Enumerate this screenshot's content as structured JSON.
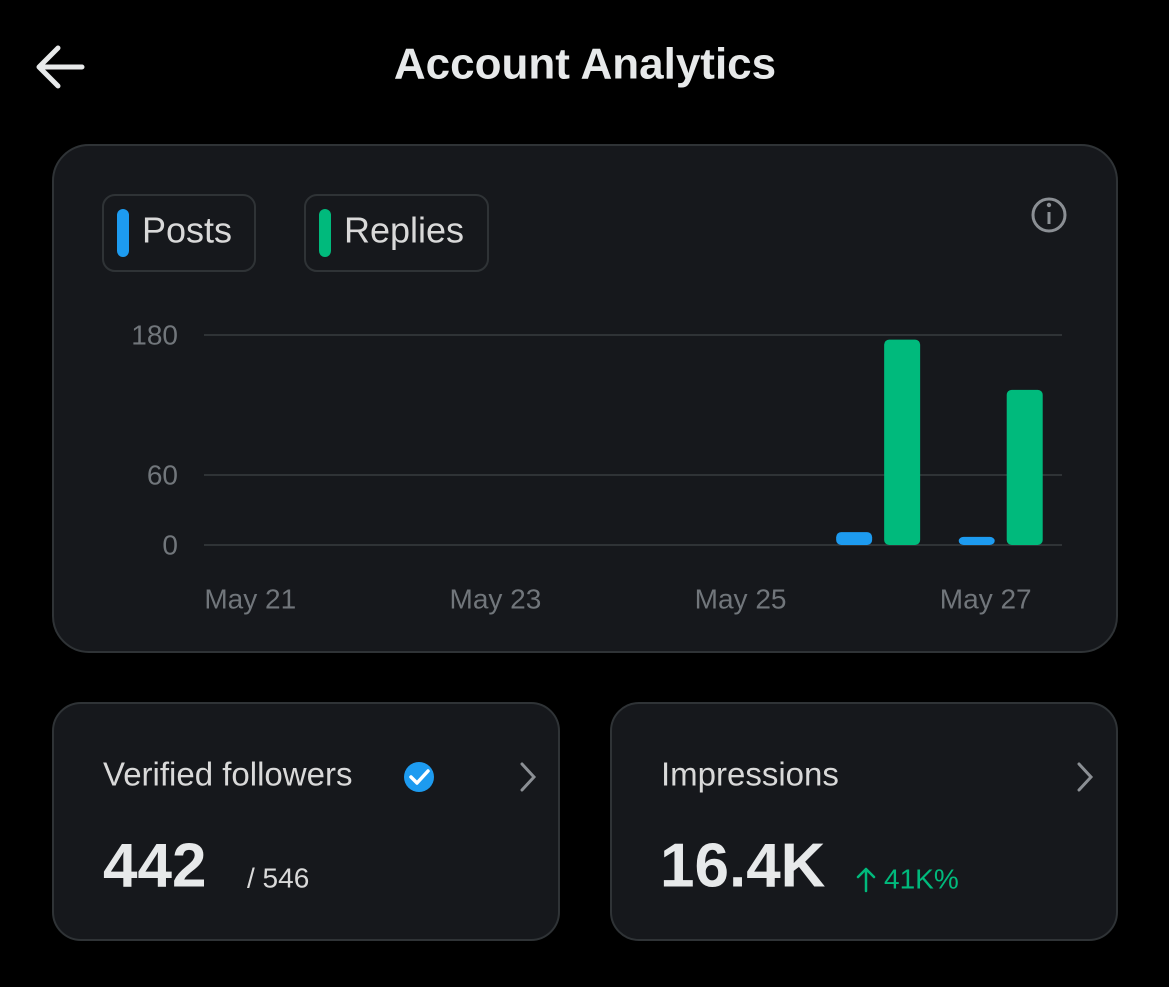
{
  "header": {
    "title": "Account Analytics"
  },
  "chart_data": {
    "type": "bar",
    "categories": [
      "May 21",
      null,
      "May 23",
      null,
      "May 25",
      null,
      "May 27"
    ],
    "series": [
      {
        "name": "Posts",
        "color": "#1d9bf0",
        "values": [
          0,
          0,
          0,
          0,
          0,
          11,
          7
        ]
      },
      {
        "name": "Replies",
        "color": "#00ba7c",
        "values": [
          0,
          0,
          0,
          0,
          0,
          176,
          133
        ]
      }
    ],
    "ylim": [
      0,
      180
    ],
    "yticks": [
      0,
      60,
      180
    ],
    "grid": true
  },
  "cards": [
    {
      "label": "Verified followers",
      "value": "442",
      "total": "/ 546"
    },
    {
      "label": "Impressions",
      "value": "16.4K",
      "change": "41K%"
    }
  ]
}
